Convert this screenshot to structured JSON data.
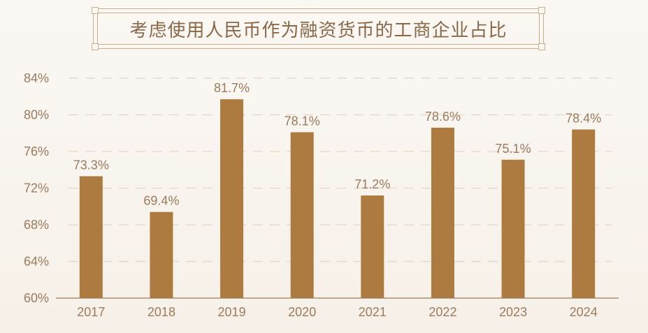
{
  "chart_data": {
    "type": "bar",
    "title": "考虑使用人民币作为融资货币的工商企业占比",
    "categories": [
      "2017",
      "2018",
      "2019",
      "2020",
      "2021",
      "2022",
      "2023",
      "2024"
    ],
    "values": [
      73.3,
      69.4,
      81.7,
      78.1,
      71.2,
      78.6,
      75.1,
      78.4
    ],
    "value_labels": [
      "73.3%",
      "69.4%",
      "81.7%",
      "78.1%",
      "71.2%",
      "78.6%",
      "75.1%",
      "78.4%"
    ],
    "yticks": [
      60,
      64,
      68,
      72,
      76,
      80,
      84
    ],
    "ytick_labels": [
      "60%",
      "64%",
      "68%",
      "72%",
      "76%",
      "80%",
      "84%"
    ],
    "ylim": [
      60,
      84
    ],
    "grid": true,
    "bar_color": "#ad7b3f",
    "text_color": "#9c7b5c",
    "grid_color": "#e2d6c8"
  }
}
